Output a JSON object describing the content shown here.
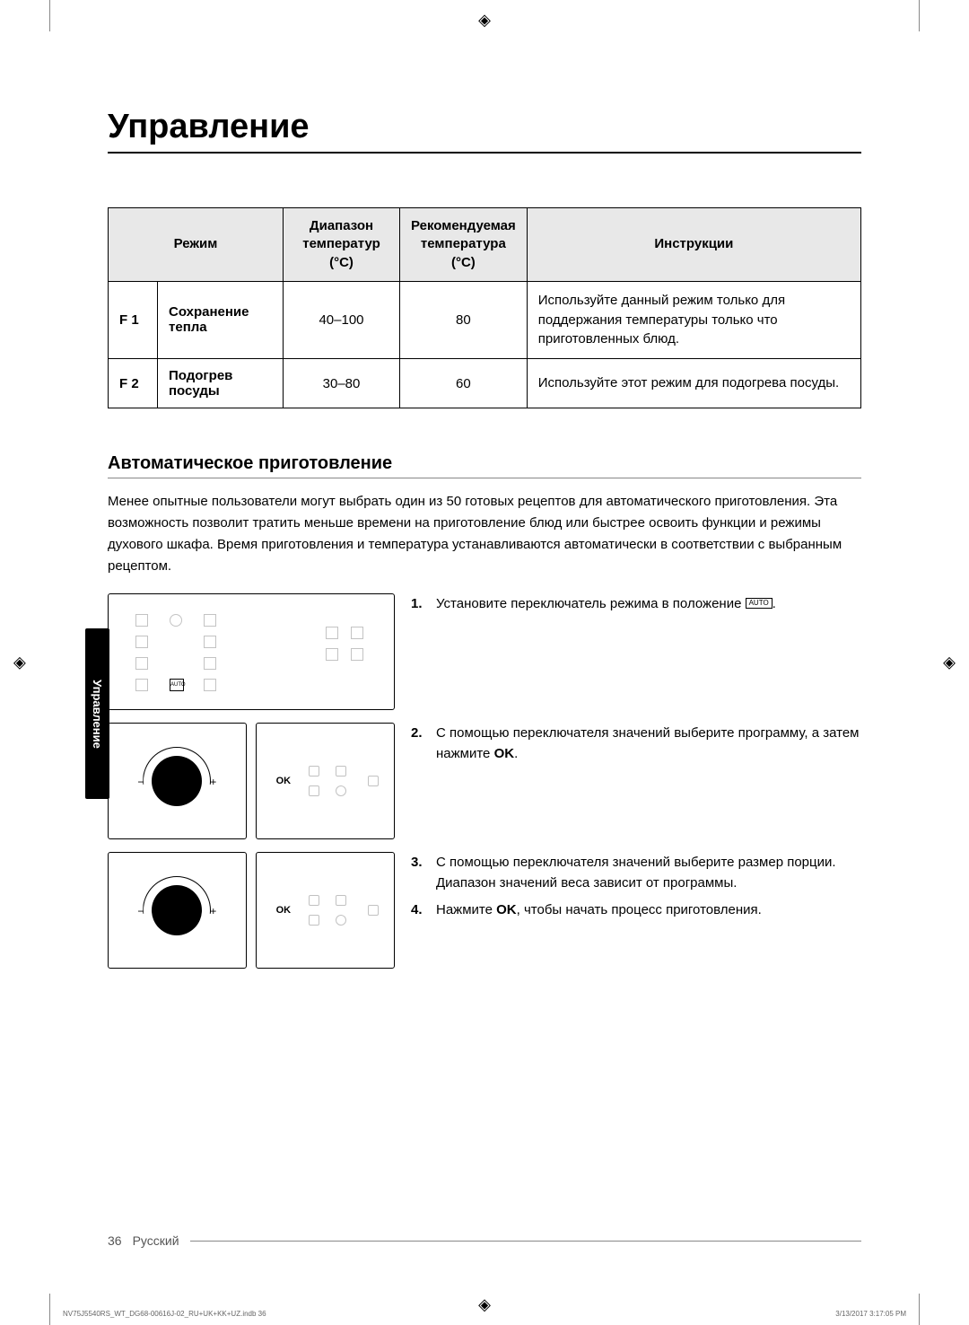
{
  "page": {
    "title": "Управление",
    "side_tab": "Управление",
    "page_num": "36",
    "lang_label": "Русский"
  },
  "table": {
    "headers": {
      "mode": "Режим",
      "range": "Диапазон температур (°C)",
      "recommended": "Рекомендуемая температура (°C)",
      "instructions": "Инструкции"
    },
    "rows": [
      {
        "code": "F 1",
        "mode": "Сохранение тепла",
        "range": "40–100",
        "recommended": "80",
        "instructions": "Используйте данный режим только для поддержания температуры только что приготовленных блюд."
      },
      {
        "code": "F 2",
        "mode": "Подогрев посуды",
        "range": "30–80",
        "recommended": "60",
        "instructions": "Используйте этот режим для подогрева посуды."
      }
    ]
  },
  "section": {
    "title": "Автоматическое приготовление",
    "intro": "Менее опытные пользователи могут выбрать один из 50 готовых рецептов для автоматического приготовления. Эта возможность позволит тратить меньше времени на приготовление блюд или быстрее освоить функции и режимы духового шкафа. Время приготовления и температура устанавливаются автоматически в соответствии с выбранным рецептом."
  },
  "steps": {
    "s1_num": "1.",
    "s1_pre": "Установите переключатель режима в положение ",
    "s1_auto": "AUTO",
    "s1_post": ".",
    "s2_num": "2.",
    "s2_text_a": "С помощью переключателя значений выберите программу, а затем нажмите ",
    "s2_ok": "OK",
    "s2_text_b": ".",
    "s3_num": "3.",
    "s3_text": "С помощью переключателя значений выберите размер порции. Диапазон значений веса зависит от программы.",
    "s4_num": "4.",
    "s4_text_a": "Нажмите ",
    "s4_ok": "OK",
    "s4_text_b": ", чтобы начать процесс приготовления."
  },
  "labels": {
    "ok": "OK",
    "minus": "−",
    "plus": "+"
  },
  "print": {
    "file": "NV75J5540RS_WT_DG68-00616J-02_RU+UK+KK+UZ.indb   36",
    "stamp": "3/13/2017   3:17:05 PM"
  },
  "colors": {
    "text": "#000000",
    "bg": "#ffffff",
    "header_bg": "#e8e8e8",
    "tab_bg": "#000000",
    "tab_fg": "#ffffff",
    "rule": "#888888"
  }
}
